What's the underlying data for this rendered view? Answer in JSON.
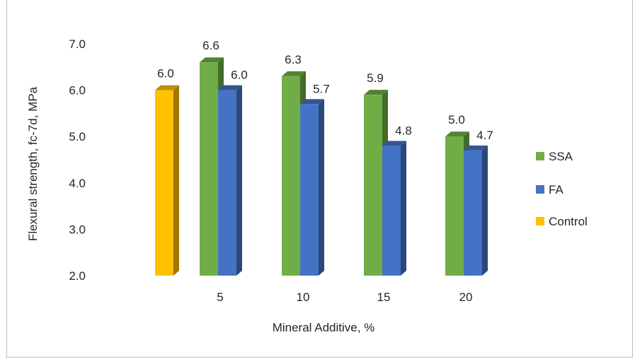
{
  "chart_data": {
    "type": "bar",
    "categories": [
      "",
      "5",
      "10",
      "15",
      "20"
    ],
    "series": [
      {
        "name": "Control",
        "color": "#ffc000",
        "values": [
          6.0,
          null,
          null,
          null,
          null
        ],
        "labels": [
          "6.0",
          null,
          null,
          null,
          null
        ]
      },
      {
        "name": "SSA",
        "color": "#70ad47",
        "values": [
          null,
          6.6,
          6.3,
          5.9,
          5.0
        ],
        "labels": [
          null,
          "6.6",
          "6.3",
          "5.9",
          "5.0"
        ]
      },
      {
        "name": "FA",
        "color": "#4472c4",
        "values": [
          null,
          6.0,
          5.7,
          4.8,
          4.7
        ],
        "labels": [
          null,
          "6.0",
          "5.7",
          "4.8",
          "4.7"
        ]
      }
    ],
    "legend_order": [
      "SSA",
      "FA",
      "Control"
    ],
    "legend_position": "right",
    "ylim": [
      2.0,
      7.0
    ],
    "yticks": [
      "2.0",
      "3.0",
      "4.0",
      "5.0",
      "6.0",
      "7.0"
    ],
    "ylabel": "Flexural strength, fc-7d, MPa",
    "xlabel": "Mineral Additive, %",
    "title": "",
    "grid": false,
    "style": "3d-clustered-column"
  }
}
